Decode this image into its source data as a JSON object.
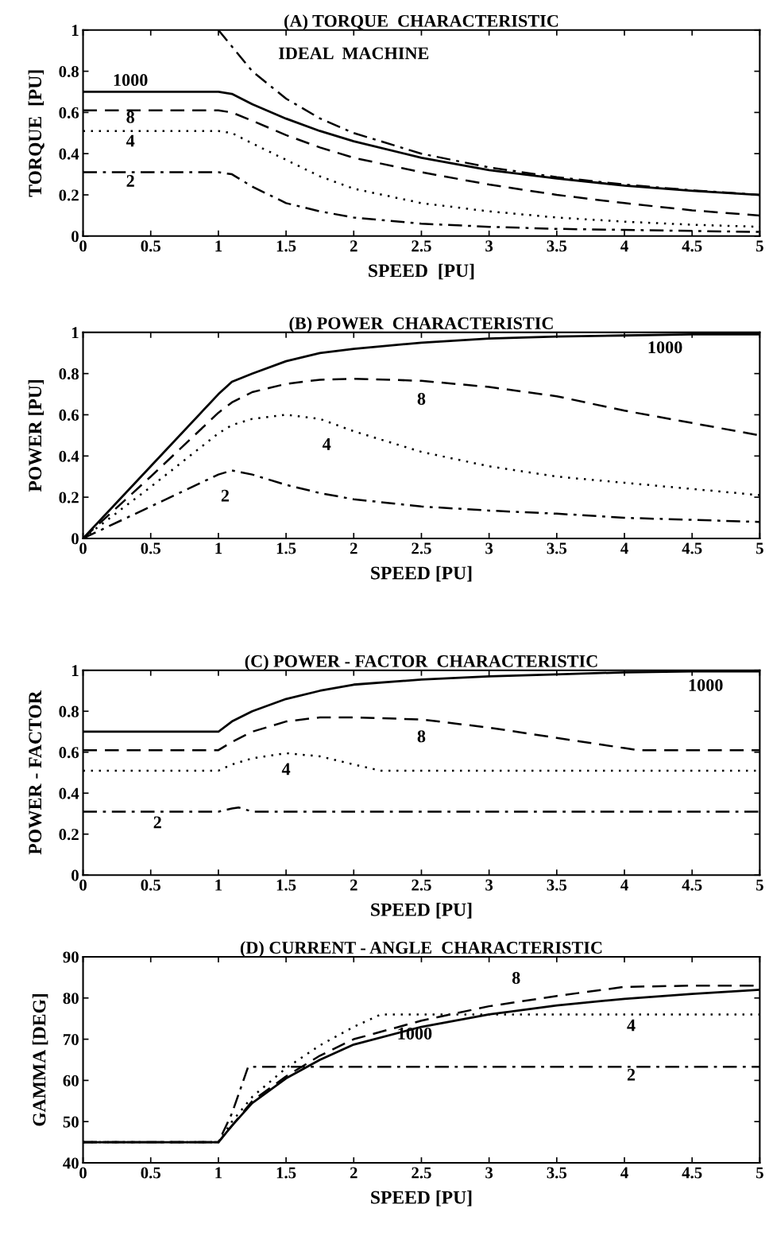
{
  "chart_data": [
    {
      "type": "line",
      "title": "(A) TORQUE  CHARACTERISTIC",
      "xlabel": "SPEED  [PU]",
      "ylabel": "TORQUE  [PU]",
      "xlim": [
        0,
        5
      ],
      "ylim": [
        0,
        1
      ],
      "xticks": [
        0,
        0.5,
        1,
        1.5,
        2,
        2.5,
        3,
        3.5,
        4,
        4.5,
        5
      ],
      "yticks": [
        0,
        0.2,
        0.4,
        0.6,
        0.8,
        1
      ],
      "grid": false,
      "legend": false,
      "series": [
        {
          "color": "#000000",
          "line_style": "solid",
          "x": [
            0,
            1,
            1.1,
            1.25,
            1.5,
            1.75,
            2,
            2.5,
            3,
            3.5,
            4,
            4.5,
            5
          ],
          "values": [
            0.7,
            0.7,
            0.69,
            0.64,
            0.57,
            0.51,
            0.46,
            0.38,
            0.32,
            0.28,
            0.245,
            0.22,
            0.2
          ]
        },
        {
          "color": "#000000",
          "line_style": "dashed",
          "x": [
            0,
            1,
            1.1,
            1.25,
            1.5,
            1.75,
            2,
            2.5,
            3,
            3.5,
            4,
            4.5,
            5
          ],
          "values": [
            0.61,
            0.61,
            0.6,
            0.56,
            0.49,
            0.43,
            0.38,
            0.31,
            0.25,
            0.2,
            0.16,
            0.125,
            0.1
          ]
        },
        {
          "color": "#000000",
          "line_style": "dotted",
          "x": [
            0,
            1,
            1.1,
            1.25,
            1.5,
            1.75,
            2,
            2.5,
            3,
            3.5,
            4,
            4.5,
            5
          ],
          "values": [
            0.51,
            0.51,
            0.5,
            0.45,
            0.37,
            0.29,
            0.23,
            0.16,
            0.12,
            0.09,
            0.07,
            0.055,
            0.045
          ]
        },
        {
          "color": "#000000",
          "line_style": "dashdot",
          "x": [
            0,
            1,
            1.1,
            1.25,
            1.5,
            1.75,
            2,
            2.5,
            3,
            3.5,
            4,
            4.5,
            5
          ],
          "values": [
            0.31,
            0.31,
            0.3,
            0.24,
            0.16,
            0.12,
            0.09,
            0.06,
            0.045,
            0.035,
            0.03,
            0.025,
            0.02
          ]
        },
        {
          "color": "#000000",
          "line_style": "dashdot",
          "x": [
            1,
            1.25,
            1.5,
            1.75,
            2,
            2.5,
            3,
            3.5,
            4,
            4.5,
            5
          ],
          "values": [
            1.0,
            0.8,
            0.667,
            0.571,
            0.5,
            0.4,
            0.333,
            0.286,
            0.25,
            0.222,
            0.2
          ]
        }
      ],
      "annotations": [
        "1000",
        "8",
        "4",
        "2",
        "IDEAL  MACHINE"
      ]
    },
    {
      "type": "line",
      "title": "(B) POWER  CHARACTERISTIC",
      "xlabel": "SPEED [PU]",
      "ylabel": "POWER [PU]",
      "xlim": [
        0,
        5
      ],
      "ylim": [
        0,
        1
      ],
      "xticks": [
        0,
        0.5,
        1,
        1.5,
        2,
        2.5,
        3,
        3.5,
        4,
        4.5,
        5
      ],
      "yticks": [
        0,
        0.2,
        0.4,
        0.6,
        0.8,
        1
      ],
      "grid": false,
      "legend": false,
      "series": [
        {
          "color": "#000000",
          "line_style": "solid",
          "x": [
            0,
            0.5,
            1,
            1.1,
            1.25,
            1.5,
            1.75,
            2,
            2.5,
            3,
            3.5,
            4,
            4.5,
            5
          ],
          "values": [
            0,
            0.35,
            0.7,
            0.76,
            0.8,
            0.86,
            0.9,
            0.92,
            0.95,
            0.97,
            0.98,
            0.985,
            0.99,
            0.99
          ]
        },
        {
          "color": "#000000",
          "line_style": "dashed",
          "x": [
            0,
            0.5,
            1,
            1.1,
            1.25,
            1.5,
            1.75,
            2,
            2.5,
            3,
            3.5,
            4,
            4.5,
            5
          ],
          "values": [
            0,
            0.3,
            0.61,
            0.66,
            0.71,
            0.75,
            0.77,
            0.775,
            0.765,
            0.735,
            0.69,
            0.62,
            0.56,
            0.5
          ]
        },
        {
          "color": "#000000",
          "line_style": "dotted",
          "x": [
            0,
            0.5,
            1,
            1.1,
            1.25,
            1.5,
            1.75,
            2,
            2.5,
            3,
            3.5,
            4,
            4.5,
            5
          ],
          "values": [
            0,
            0.25,
            0.51,
            0.55,
            0.58,
            0.6,
            0.58,
            0.52,
            0.42,
            0.35,
            0.3,
            0.27,
            0.24,
            0.21
          ]
        },
        {
          "color": "#000000",
          "line_style": "dashdot",
          "x": [
            0,
            0.5,
            1,
            1.1,
            1.25,
            1.5,
            1.75,
            2,
            2.5,
            3,
            3.5,
            4,
            4.5,
            5
          ],
          "values": [
            0,
            0.155,
            0.31,
            0.33,
            0.31,
            0.26,
            0.22,
            0.19,
            0.155,
            0.135,
            0.12,
            0.1,
            0.09,
            0.08
          ]
        }
      ],
      "annotations": [
        "1000",
        "8",
        "4",
        "2"
      ]
    },
    {
      "type": "line",
      "title": "(C) POWER - FACTOR  CHARACTERISTIC",
      "xlabel": "SPEED [PU]",
      "ylabel": "POWER - FACTOR",
      "xlim": [
        0,
        5
      ],
      "ylim": [
        0,
        1
      ],
      "xticks": [
        0,
        0.5,
        1,
        1.5,
        2,
        2.5,
        3,
        3.5,
        4,
        4.5,
        5
      ],
      "yticks": [
        0,
        0.2,
        0.4,
        0.6,
        0.8,
        1
      ],
      "grid": false,
      "legend": false,
      "series": [
        {
          "color": "#000000",
          "line_style": "solid",
          "x": [
            0,
            1,
            1.1,
            1.25,
            1.5,
            1.75,
            2,
            2.5,
            3,
            3.5,
            4,
            4.5,
            5
          ],
          "values": [
            0.7,
            0.7,
            0.75,
            0.8,
            0.86,
            0.9,
            0.93,
            0.955,
            0.97,
            0.98,
            0.99,
            0.995,
            0.995
          ]
        },
        {
          "color": "#000000",
          "line_style": "dashed",
          "x": [
            0,
            1,
            1.1,
            1.25,
            1.5,
            1.75,
            2,
            2.5,
            3,
            3.5,
            4,
            4.1,
            5
          ],
          "values": [
            0.61,
            0.61,
            0.65,
            0.7,
            0.75,
            0.77,
            0.77,
            0.76,
            0.72,
            0.67,
            0.62,
            0.61,
            0.61
          ]
        },
        {
          "color": "#000000",
          "line_style": "dotted",
          "x": [
            0,
            1,
            1.1,
            1.25,
            1.5,
            1.75,
            2,
            2.2,
            5
          ],
          "values": [
            0.51,
            0.51,
            0.54,
            0.57,
            0.595,
            0.58,
            0.54,
            0.51,
            0.51
          ]
        },
        {
          "color": "#000000",
          "line_style": "dashdot",
          "x": [
            0,
            1,
            1.1,
            1.15,
            1.25,
            5
          ],
          "values": [
            0.31,
            0.31,
            0.325,
            0.33,
            0.31,
            0.31
          ]
        }
      ],
      "annotations": [
        "1000",
        "8",
        "4",
        "2"
      ]
    },
    {
      "type": "line",
      "title": "(D) CURRENT - ANGLE  CHARACTERISTIC",
      "xlabel": "SPEED [PU]",
      "ylabel": "GAMMA [DEG]",
      "xlim": [
        0,
        5
      ],
      "ylim": [
        40,
        90
      ],
      "xticks": [
        0,
        0.5,
        1,
        1.5,
        2,
        2.5,
        3,
        3.5,
        4,
        4.5,
        5
      ],
      "yticks": [
        40,
        50,
        60,
        70,
        80,
        90
      ],
      "grid": false,
      "legend": false,
      "series": [
        {
          "color": "#000000",
          "line_style": "solid",
          "x": [
            0,
            1,
            1.1,
            1.25,
            1.5,
            1.75,
            2,
            2.5,
            3,
            3.5,
            4,
            4.5,
            5
          ],
          "values": [
            45,
            45,
            49,
            54.5,
            60.5,
            65,
            68.7,
            73,
            76,
            78.2,
            79.8,
            81,
            82
          ]
        },
        {
          "color": "#000000",
          "line_style": "dashed",
          "x": [
            0,
            1,
            1.1,
            1.25,
            1.5,
            1.75,
            2,
            2.5,
            3,
            3.5,
            4,
            4.5,
            5
          ],
          "values": [
            45,
            45,
            49,
            55,
            61,
            66,
            70,
            74.5,
            78,
            80.5,
            82.7,
            83,
            83
          ]
        },
        {
          "color": "#000000",
          "line_style": "dotted",
          "x": [
            0,
            1,
            1.1,
            1.25,
            1.5,
            1.75,
            2,
            2.2,
            5
          ],
          "values": [
            45,
            45,
            50,
            56,
            63,
            68.5,
            73,
            76,
            76
          ]
        },
        {
          "color": "#000000",
          "line_style": "dashdot",
          "x": [
            0,
            1,
            1.1,
            1.22,
            5
          ],
          "values": [
            45,
            45,
            52,
            63.3,
            63.3
          ]
        }
      ],
      "annotations": [
        "1000",
        "8",
        "4",
        "2"
      ]
    }
  ]
}
